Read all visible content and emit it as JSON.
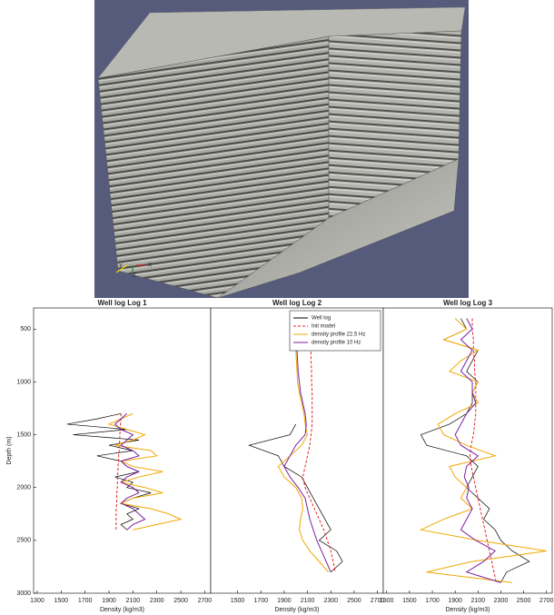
{
  "axes_triad": {
    "labels": [
      "Y",
      "Z",
      "X"
    ]
  },
  "chart_data": [
    {
      "type": "line",
      "title": "Well log Log 1",
      "x_label": "Density (kg/m3)",
      "y_label": "Depth (m)",
      "xlim": [
        1270,
        2750
      ],
      "xticks": [
        1300,
        1500,
        1700,
        1900,
        2100,
        2300,
        2500,
        2700
      ],
      "ylim": [
        300,
        3000
      ],
      "yticks": [
        500,
        1000,
        1500,
        2000,
        2500,
        3000
      ],
      "depth": [
        1300,
        1350,
        1400,
        1450,
        1500,
        1550,
        1600,
        1650,
        1700,
        1750,
        1800,
        1850,
        1900,
        1950,
        2000,
        2050,
        2100,
        2150,
        2200,
        2250,
        2300,
        2350,
        2400
      ],
      "series": [
        {
          "color": "#000000",
          "values": [
            2000,
            1800,
            1550,
            2050,
            1600,
            2150,
            1900,
            2100,
            1800,
            2000,
            2050,
            2150,
            1950,
            2100,
            2050,
            2250,
            2100,
            2000,
            2150,
            2050,
            2100,
            2000,
            2050
          ]
        },
        {
          "color": "#e8202a",
          "dashed": true,
          "values": [
            2000,
            2000,
            1995,
            1995,
            1990,
            1990,
            1985,
            1985,
            1980,
            1980,
            1975,
            1975,
            1970,
            1970,
            1970,
            1965,
            1965,
            1965,
            1960,
            1960,
            1960,
            1960,
            1960
          ]
        },
        {
          "color": "#f0a800",
          "values": [
            2100,
            2000,
            1900,
            2050,
            2200,
            2100,
            1950,
            2250,
            2300,
            2000,
            2100,
            2350,
            2150,
            2000,
            2200,
            2350,
            2100,
            2000,
            2250,
            2400,
            2500,
            2300,
            2100
          ]
        },
        {
          "color": "#7a1fa2",
          "values": [
            2050,
            2000,
            1950,
            2000,
            2100,
            2050,
            2000,
            2100,
            2150,
            2000,
            2050,
            2150,
            2050,
            2000,
            2100,
            2150,
            2050,
            2000,
            2100,
            2150,
            2200,
            2100,
            2050
          ]
        }
      ]
    },
    {
      "type": "line",
      "title": "Well log Log 2",
      "x_label": "Density (kg/m3)",
      "xlim": [
        1270,
        2750
      ],
      "xticks": [
        1500,
        1700,
        1900,
        2100,
        2300,
        2500,
        2700
      ],
      "ylim": [
        300,
        3000
      ],
      "legend": "upper right",
      "depth": [
        500,
        600,
        700,
        800,
        900,
        1000,
        1100,
        1200,
        1300,
        1400,
        1500,
        1600,
        1700,
        1800,
        1900,
        2000,
        2100,
        2200,
        2300,
        2400,
        2500,
        2600,
        2700,
        2800
      ],
      "series": [
        {
          "name": "Well log",
          "color": "#000000",
          "values": [
            null,
            null,
            null,
            null,
            null,
            null,
            null,
            null,
            null,
            2000,
            1950,
            1600,
            1850,
            1900,
            2050,
            2100,
            2150,
            2200,
            2250,
            2300,
            2200,
            2350,
            2400,
            2300
          ]
        },
        {
          "name": "Init model",
          "color": "#e8202a",
          "dashed": true,
          "values": [
            2120,
            2125,
            2130,
            2130,
            2135,
            2135,
            2140,
            2140,
            2140,
            2140,
            2130,
            2120,
            2100,
            2080,
            2060,
            2080,
            2120,
            2160,
            2200,
            2240,
            2270,
            2300,
            2320,
            2340
          ]
        },
        {
          "name": "density profile 22.5 Hz",
          "color": "#f0a800",
          "values": [
            1990,
            1995,
            2000,
            2005,
            2010,
            2015,
            2030,
            2050,
            2070,
            2080,
            2100,
            2050,
            1950,
            1850,
            1900,
            2000,
            2050,
            2060,
            2040,
            2030,
            2060,
            2120,
            2200,
            2280
          ]
        },
        {
          "name": "density profile 10 Hz",
          "color": "#7a1fa2",
          "values": [
            2000,
            2005,
            2010,
            2015,
            2020,
            2030,
            2040,
            2060,
            2080,
            2090,
            2080,
            2000,
            1950,
            1900,
            1950,
            2020,
            2080,
            2100,
            2120,
            2150,
            2180,
            2220,
            2260,
            2300
          ]
        }
      ]
    },
    {
      "type": "line",
      "title": "Well log Log 3",
      "x_label": "Density (kg/m3)",
      "xlim": [
        1270,
        2750
      ],
      "xticks": [
        1300,
        1500,
        1700,
        1900,
        2100,
        2300,
        2500,
        2700
      ],
      "ylim": [
        300,
        3000
      ],
      "depth": [
        400,
        500,
        600,
        700,
        800,
        900,
        1000,
        1100,
        1200,
        1300,
        1400,
        1500,
        1600,
        1700,
        1800,
        1900,
        2000,
        2100,
        2200,
        2300,
        2400,
        2500,
        2600,
        2700,
        2800,
        2900
      ],
      "series": [
        {
          "color": "#000000",
          "values": [
            1950,
            2000,
            1800,
            2100,
            2050,
            2000,
            2100,
            2050,
            2050,
            2000,
            1850,
            1600,
            1650,
            2000,
            2100,
            2050,
            2000,
            2100,
            2200,
            2150,
            2250,
            2300,
            2400,
            2550,
            2350,
            2300
          ]
        },
        {
          "color": "#e8202a",
          "dashed": true,
          "values": [
            2050,
            2050,
            2060,
            2060,
            2070,
            2070,
            2080,
            2080,
            2080,
            2080,
            2070,
            2060,
            2040,
            2030,
            2040,
            2060,
            2080,
            2100,
            2120,
            2140,
            2160,
            2180,
            2200,
            2220,
            2240,
            2260
          ]
        },
        {
          "color": "#f0a800",
          "values": [
            1900,
            2000,
            1800,
            2100,
            1950,
            1850,
            2100,
            2050,
            2100,
            1900,
            1750,
            1800,
            2000,
            2250,
            1850,
            1900,
            2000,
            1950,
            2050,
            1800,
            1600,
            2100,
            2700,
            2050,
            1650,
            2400
          ]
        },
        {
          "color": "#7a1fa2",
          "values": [
            2000,
            2050,
            1950,
            2050,
            2000,
            1950,
            2050,
            2050,
            2080,
            2000,
            1950,
            1900,
            1950,
            2100,
            2000,
            1980,
            2020,
            2000,
            2050,
            2000,
            1950,
            2080,
            2250,
            2150,
            2000,
            2300
          ]
        }
      ]
    }
  ]
}
